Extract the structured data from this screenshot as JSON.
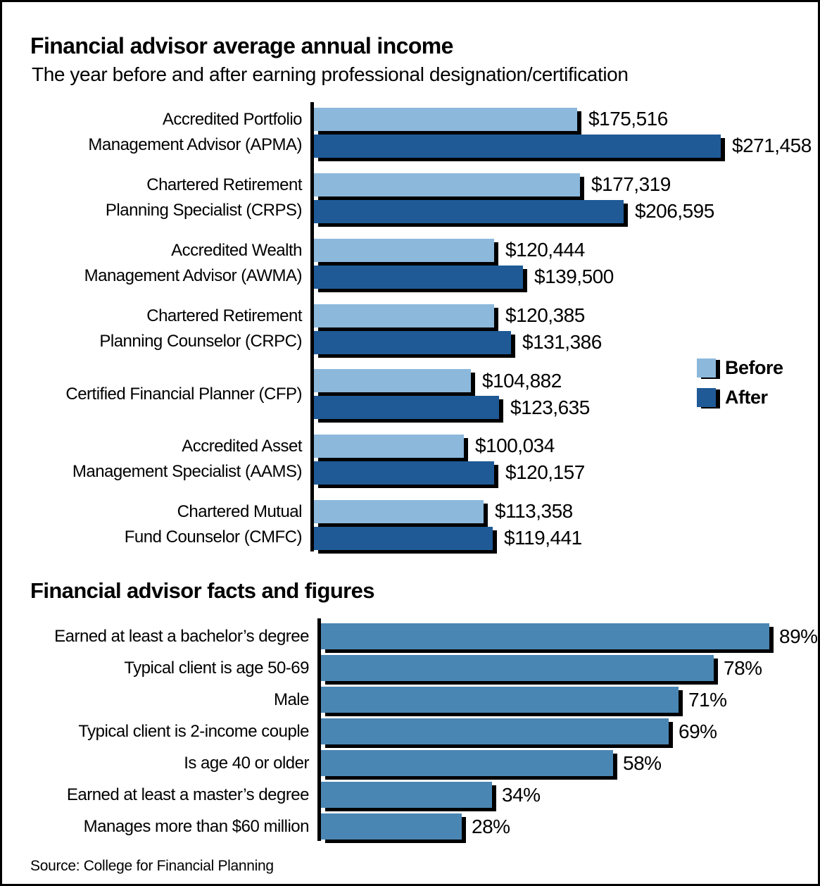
{
  "source": "Source: College for Financial Planning",
  "chart_data": [
    {
      "type": "bar",
      "orientation": "horizontal",
      "title": "Financial advisor average annual income",
      "subtitle": "The year before and after earning professional designation/certification",
      "categories": [
        [
          "Accredited Portfolio",
          "Management Advisor (APMA)"
        ],
        [
          "Chartered Retirement",
          "Planning Specialist (CRPS)"
        ],
        [
          "Accredited Wealth",
          "Management Advisor (AWMA)"
        ],
        [
          "Chartered Retirement",
          "Planning Counselor (CRPC)"
        ],
        [
          "Certified Financial Planner (CFP)"
        ],
        [
          "Accredited Asset",
          "Management Specialist (AAMS)"
        ],
        [
          "Chartered Mutual",
          "Fund Counselor (CMFC)"
        ]
      ],
      "series": [
        {
          "name": "Before",
          "color": "#8CB8DC",
          "values": [
            175516,
            177319,
            120444,
            120385,
            104882,
            100034,
            113358
          ],
          "labels": [
            "$175,516",
            "$177,319",
            "$120,444",
            "$120,385",
            "$104,882",
            "$100,034",
            "$113,358"
          ]
        },
        {
          "name": "After",
          "color": "#1F5A96",
          "values": [
            271458,
            206595,
            139500,
            131386,
            123635,
            120157,
            119441
          ],
          "labels": [
            "$271,458",
            "$206,595",
            "$139,500",
            "$131,386",
            "$123,635",
            "$120,157",
            "$119,441"
          ]
        }
      ],
      "xlim": [
        0,
        271458
      ],
      "grid": false,
      "legend_position": "right",
      "value_labels": "outside-end",
      "bar_shadow_color": "#000000"
    },
    {
      "type": "bar",
      "orientation": "horizontal",
      "title": "Financial advisor facts and figures",
      "categories": [
        "Earned at least a bachelor’s degree",
        "Typical client is age 50-69",
        "Male",
        "Typical client is 2-income couple",
        "Is age 40 or older",
        "Earned at least a master’s degree",
        "Manages more than $60 million"
      ],
      "values": [
        89,
        78,
        71,
        69,
        58,
        34,
        28
      ],
      "labels": [
        "89%",
        "78%",
        "71%",
        "69%",
        "58%",
        "34%",
        "28%"
      ],
      "color": "#4A86B3",
      "xlim": [
        0,
        89
      ],
      "grid": false,
      "value_labels": "outside-end",
      "bar_shadow_color": "#000000"
    }
  ]
}
